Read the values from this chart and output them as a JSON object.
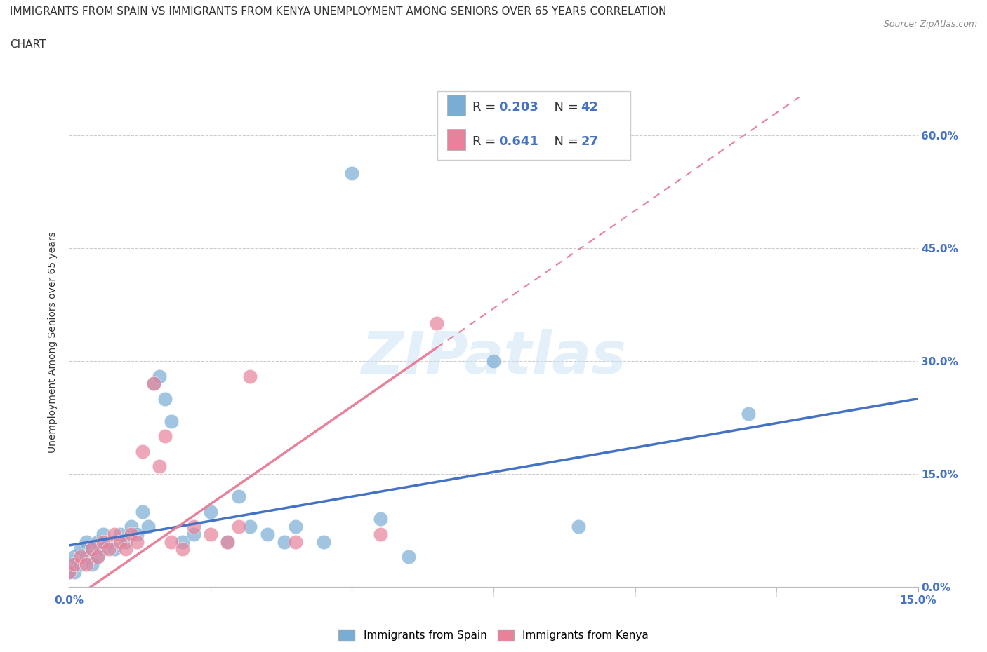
{
  "title_line1": "IMMIGRANTS FROM SPAIN VS IMMIGRANTS FROM KENYA UNEMPLOYMENT AMONG SENIORS OVER 65 YEARS CORRELATION",
  "title_line2": "CHART",
  "source": "Source: ZipAtlas.com",
  "ylabel": "Unemployment Among Seniors over 65 years",
  "xlim": [
    0.0,
    0.15
  ],
  "ylim": [
    0.0,
    0.65
  ],
  "spain_color": "#7aadd4",
  "kenya_color": "#e8829a",
  "spain_R": 0.203,
  "spain_N": 42,
  "kenya_R": 0.641,
  "kenya_N": 27,
  "spain_scatter_x": [
    0.0,
    0.0,
    0.001,
    0.001,
    0.002,
    0.002,
    0.003,
    0.003,
    0.004,
    0.004,
    0.005,
    0.005,
    0.006,
    0.006,
    0.007,
    0.008,
    0.009,
    0.01,
    0.011,
    0.012,
    0.013,
    0.014,
    0.015,
    0.016,
    0.017,
    0.018,
    0.02,
    0.022,
    0.025,
    0.028,
    0.03,
    0.032,
    0.035,
    0.038,
    0.04,
    0.045,
    0.05,
    0.055,
    0.06,
    0.075,
    0.09,
    0.12
  ],
  "spain_scatter_y": [
    0.02,
    0.03,
    0.02,
    0.04,
    0.03,
    0.05,
    0.04,
    0.06,
    0.05,
    0.03,
    0.06,
    0.04,
    0.05,
    0.07,
    0.06,
    0.05,
    0.07,
    0.06,
    0.08,
    0.07,
    0.1,
    0.08,
    0.27,
    0.28,
    0.25,
    0.22,
    0.06,
    0.07,
    0.1,
    0.06,
    0.12,
    0.08,
    0.07,
    0.06,
    0.08,
    0.06,
    0.55,
    0.09,
    0.04,
    0.3,
    0.08,
    0.23
  ],
  "kenya_scatter_x": [
    0.0,
    0.001,
    0.002,
    0.003,
    0.004,
    0.005,
    0.006,
    0.007,
    0.008,
    0.009,
    0.01,
    0.011,
    0.012,
    0.013,
    0.015,
    0.016,
    0.017,
    0.018,
    0.02,
    0.022,
    0.025,
    0.028,
    0.03,
    0.032,
    0.04,
    0.055,
    0.065
  ],
  "kenya_scatter_y": [
    0.02,
    0.03,
    0.04,
    0.03,
    0.05,
    0.04,
    0.06,
    0.05,
    0.07,
    0.06,
    0.05,
    0.07,
    0.06,
    0.18,
    0.27,
    0.16,
    0.2,
    0.06,
    0.05,
    0.08,
    0.07,
    0.06,
    0.08,
    0.28,
    0.06,
    0.07,
    0.35
  ],
  "legend_spain_label": "Immigrants from Spain",
  "legend_kenya_label": "Immigrants from Kenya",
  "watermark": "ZIPatlas",
  "background_color": "#ffffff",
  "grid_color": "#cccccc",
  "title_color": "#333333",
  "tick_color": "#4472c4",
  "blue_trend_color": "#4472c4",
  "pink_trend_color": "#e8829a",
  "spain_line_intercept": 0.055,
  "spain_line_slope": 1.3,
  "kenya_line_intercept": -0.02,
  "kenya_line_slope": 5.2
}
